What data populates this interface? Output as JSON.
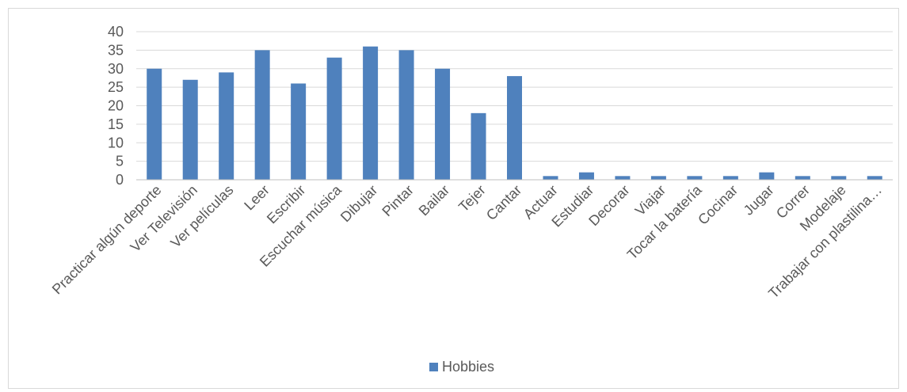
{
  "chart_data": {
    "type": "bar",
    "title": "",
    "xlabel": "",
    "ylabel": "",
    "ylim": [
      0,
      40
    ],
    "y_ticks": [
      0,
      5,
      10,
      15,
      20,
      25,
      30,
      35,
      40
    ],
    "grid": true,
    "legend_position": "bottom",
    "categories": [
      "Practicar algún deporte",
      "Ver Televisión",
      "Ver películas",
      "Leer",
      "Escribir",
      "Escuchar música",
      "Dibujar",
      "Pintar",
      "Bailar",
      "Tejer",
      "Cantar",
      "Actuar",
      "Estudiar",
      "Decorar",
      "Viajar",
      "Tocar la batería",
      "Cocinar",
      "Jugar",
      "Correr",
      "Modelaje",
      "Trabajar con plastilina…"
    ],
    "series": [
      {
        "name": "Hobbies",
        "color": "#4f81bd",
        "values": [
          30,
          27,
          29,
          35,
          26,
          33,
          36,
          35,
          30,
          18,
          28,
          1,
          2,
          1,
          1,
          1,
          1,
          2,
          1,
          1,
          1
        ]
      }
    ]
  }
}
